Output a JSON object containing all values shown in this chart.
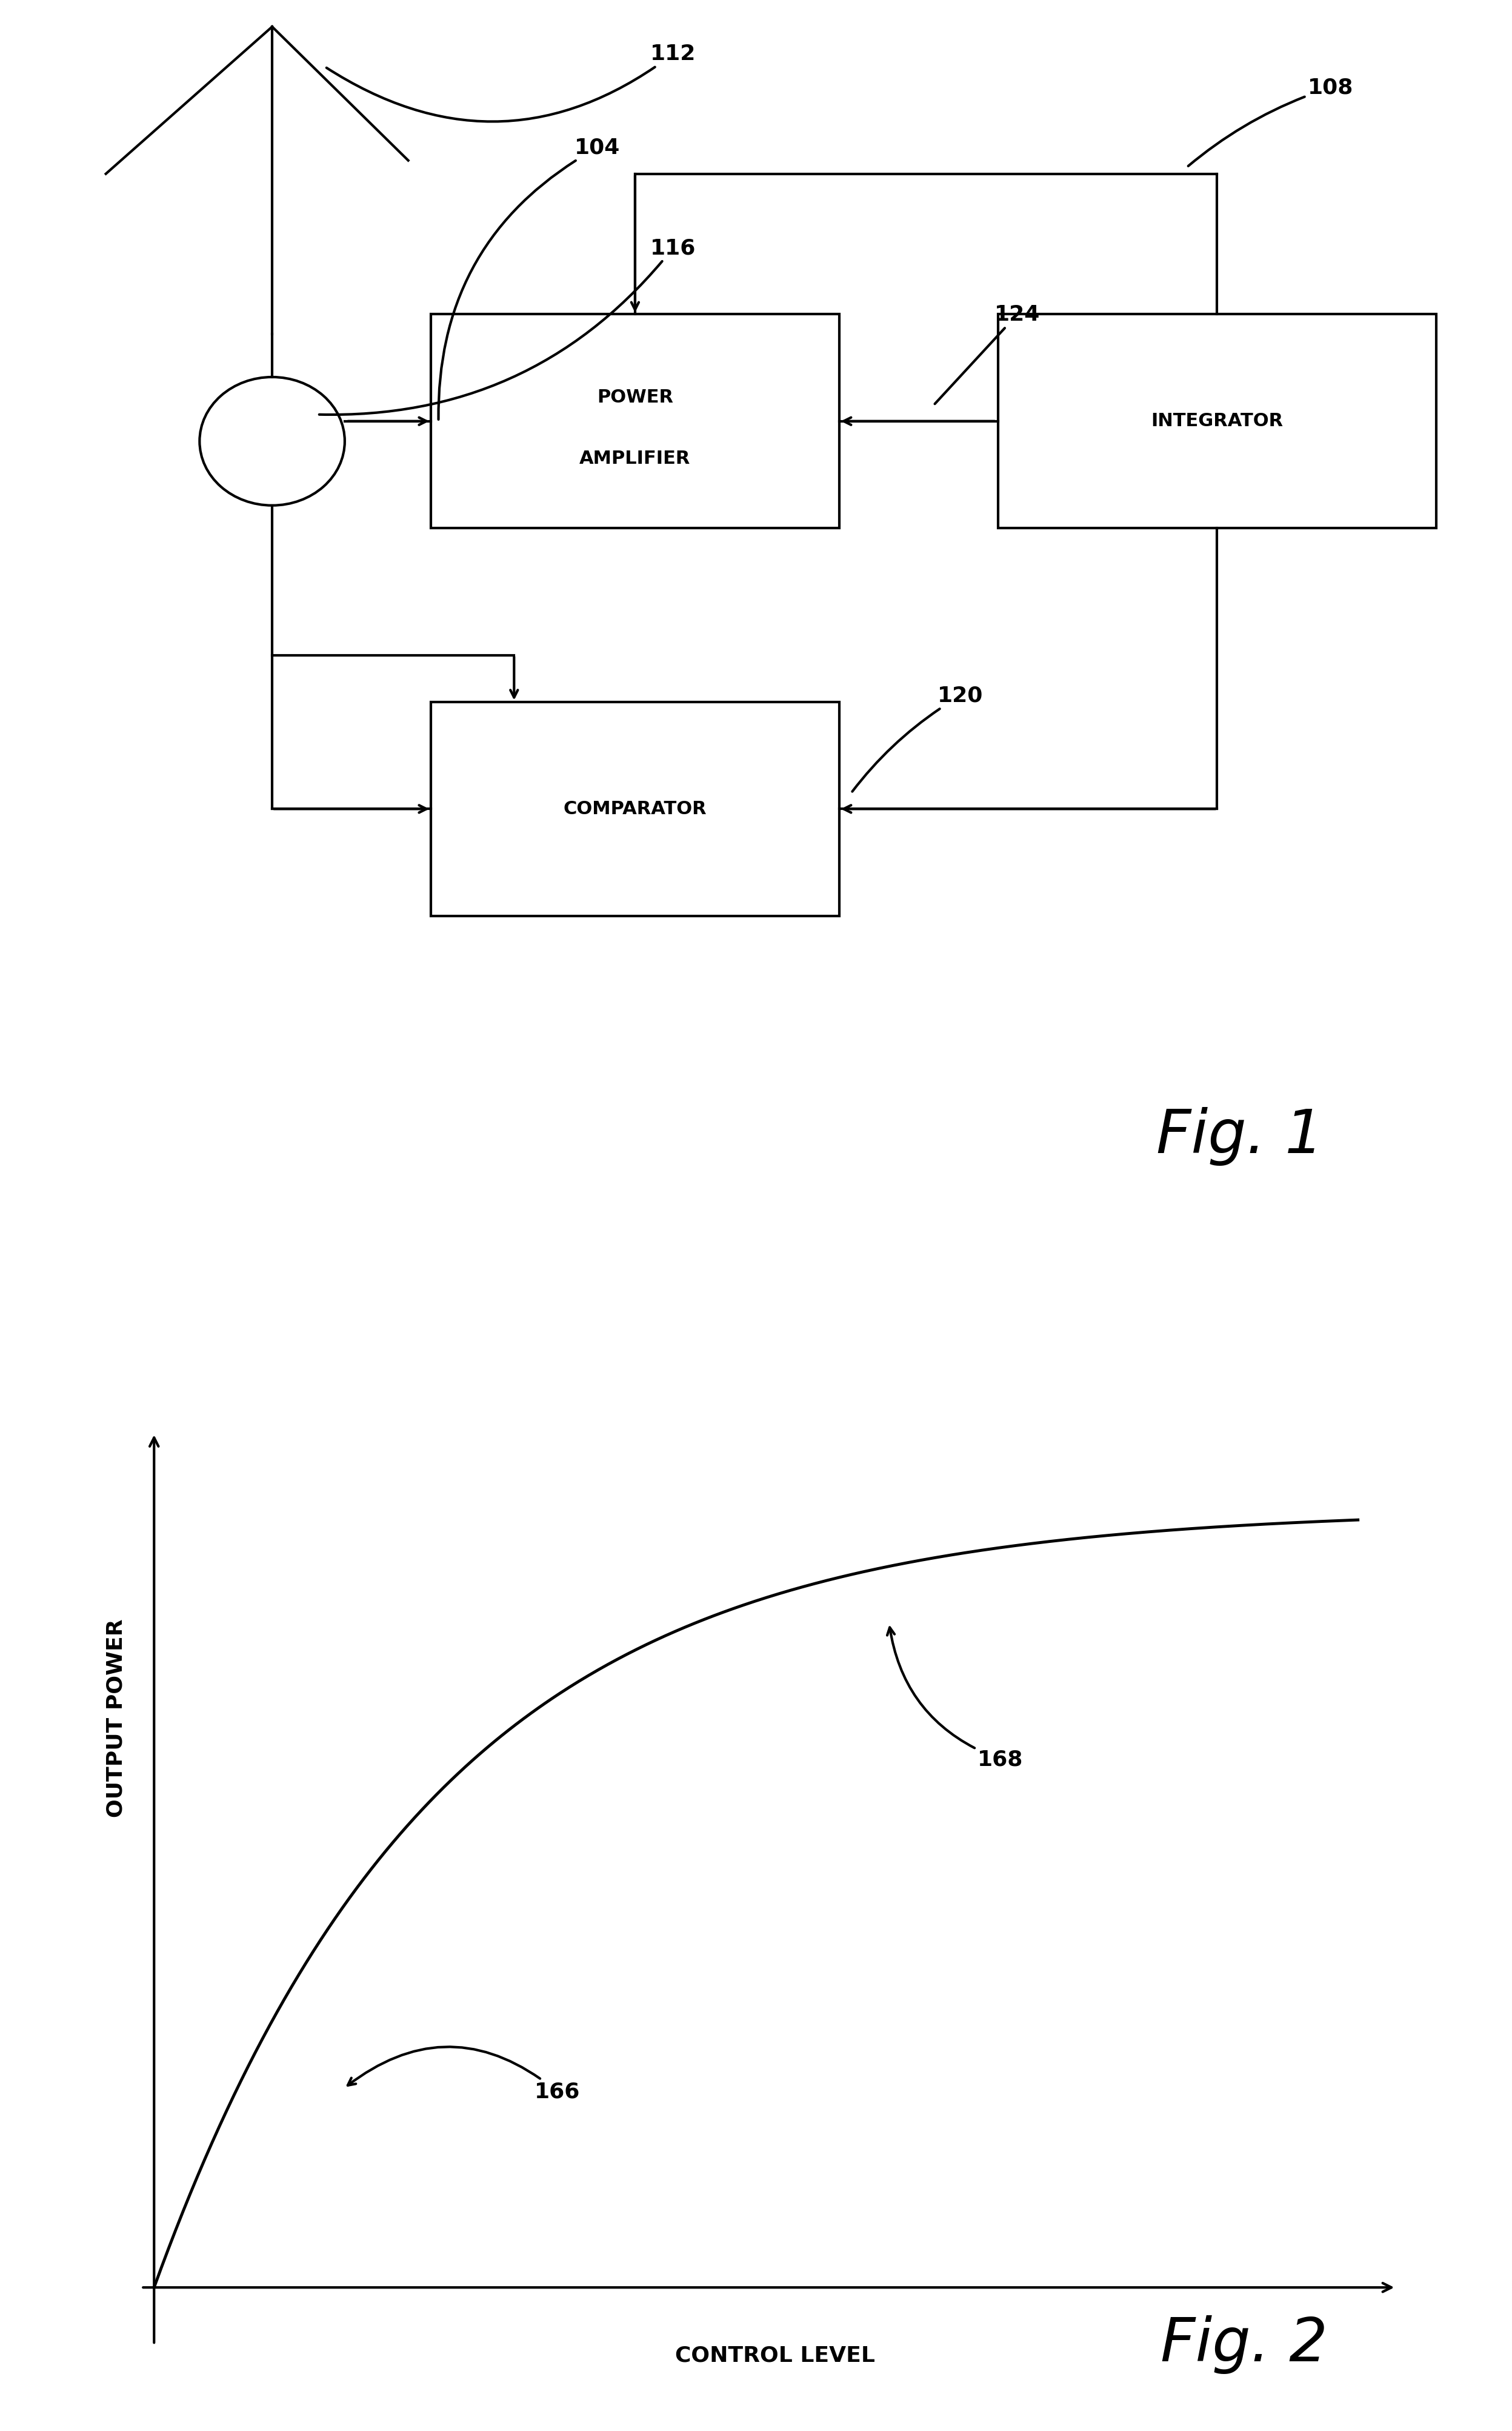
{
  "bg_color": "#ffffff",
  "fig1_title": "Fig. 1",
  "fig2_title": "Fig. 2",
  "label_112": "112",
  "label_116": "116",
  "label_104": "104",
  "label_108": "108",
  "label_124": "124",
  "label_120": "120",
  "label_166": "166",
  "label_168": "168",
  "box_pa_text_1": "POWER",
  "box_pa_text_2": "AMPLIFIER",
  "box_int_text": "INTEGRATOR",
  "box_comp_text": "COMPARATOR",
  "xlabel": "CONTROL LEVEL",
  "ylabel": "OUTPUT POWER"
}
